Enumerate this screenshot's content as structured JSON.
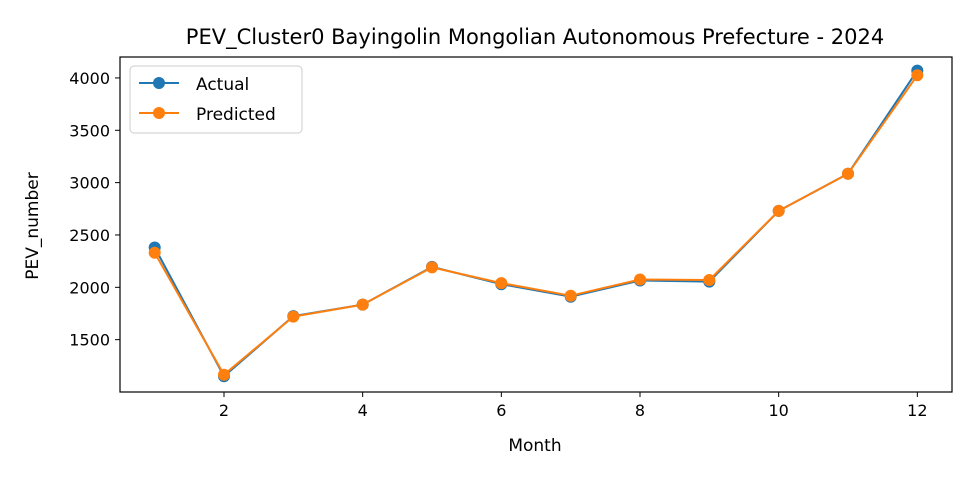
{
  "chart_data": {
    "type": "line",
    "title": "PEV_Cluster0 Bayingolin Mongolian Autonomous Prefecture - 2024",
    "xlabel": "Month",
    "ylabel": "PEV_number",
    "x": [
      1,
      2,
      3,
      4,
      5,
      6,
      7,
      8,
      9,
      10,
      11,
      12
    ],
    "xlim": [
      0.5,
      12.5
    ],
    "ylim": [
      1000,
      4200
    ],
    "xticks": [
      2,
      4,
      6,
      8,
      10,
      12
    ],
    "yticks": [
      1500,
      2000,
      2500,
      3000,
      3500,
      4000
    ],
    "grid": false,
    "legend_position": "upper-left",
    "series": [
      {
        "name": "Actual",
        "color": "#1f77b4",
        "marker": "circle",
        "values": [
          2380,
          1150,
          1725,
          1835,
          2195,
          2030,
          1910,
          2065,
          2055,
          2730,
          3085,
          4070
        ]
      },
      {
        "name": "Predicted",
        "color": "#ff7f0e",
        "marker": "circle",
        "values": [
          2330,
          1165,
          1720,
          1835,
          2190,
          2040,
          1920,
          2075,
          2070,
          2730,
          3085,
          4025
        ]
      }
    ]
  }
}
